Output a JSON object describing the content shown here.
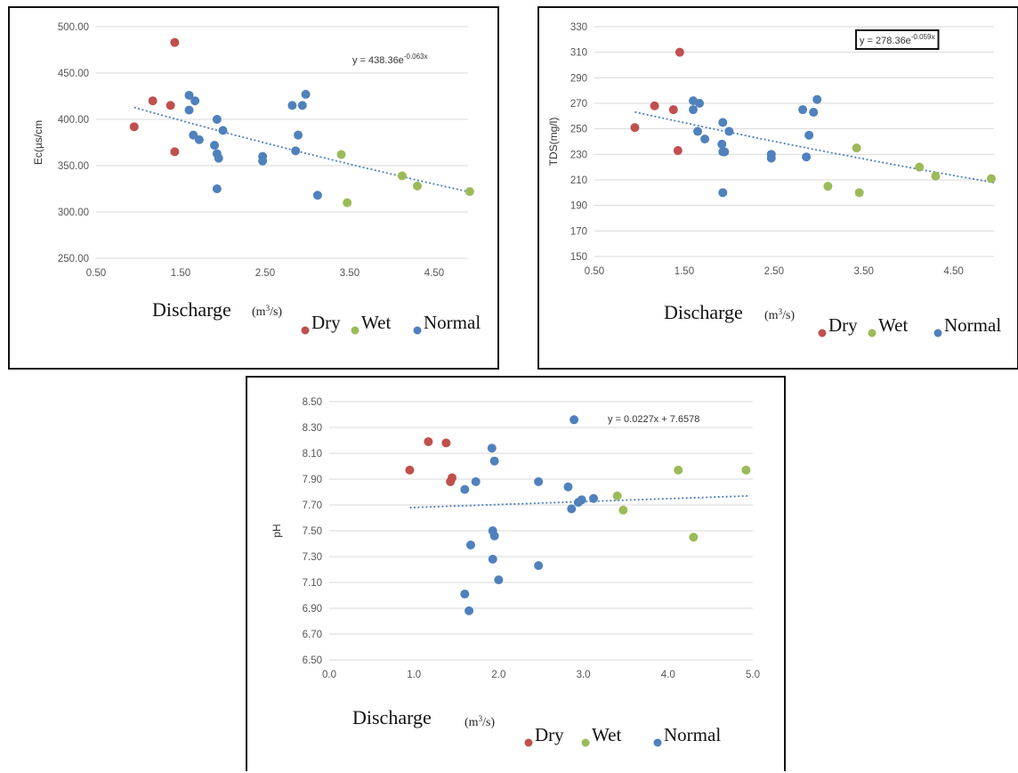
{
  "colors": {
    "dry": "#c0504d",
    "wet": "#9bbb59",
    "normal": "#4f81bd",
    "trend": "#4f81bd",
    "grid": "#d9d9d9"
  },
  "legend": {
    "dry": "Dry",
    "wet": "Wet",
    "normal": "Normal"
  },
  "x_title": "Discharge",
  "x_unit": {
    "base": "(m",
    "sup": "3",
    "tail": "/s)"
  },
  "chart_data": [
    {
      "id": "ec",
      "type": "scatter",
      "ylabel": "Ec(µs/cm",
      "yticks": [
        "250.00",
        "300.00",
        "350.00",
        "400.00",
        "450.00",
        "500.00"
      ],
      "xticks": [
        "0.50",
        "1.50",
        "2.50",
        "3.50",
        "4.50"
      ],
      "xlim": [
        0.5,
        4.9
      ],
      "ylim": [
        250,
        500
      ],
      "grid": true,
      "equation": {
        "base": "y = 438.36e",
        "sup": "-0.063x"
      },
      "equation_boxed": false,
      "trend": {
        "kind": "exp",
        "a": 438.36,
        "b": -0.063,
        "x_from": 0.95,
        "x_to": 4.9
      },
      "series": [
        {
          "name": "Dry",
          "points": [
            [
              0.95,
              392
            ],
            [
              1.17,
              420
            ],
            [
              1.38,
              415
            ],
            [
              1.43,
              483
            ],
            [
              1.43,
              365
            ]
          ]
        },
        {
          "name": "Wet",
          "points": [
            [
              3.4,
              362
            ],
            [
              3.47,
              310
            ],
            [
              4.12,
              339
            ],
            [
              4.3,
              328
            ],
            [
              4.92,
              322
            ]
          ]
        },
        {
          "name": "Normal",
          "points": [
            [
              1.6,
              426
            ],
            [
              1.6,
              410
            ],
            [
              1.67,
              420
            ],
            [
              1.65,
              383
            ],
            [
              1.72,
              378
            ],
            [
              1.9,
              372
            ],
            [
              1.93,
              363
            ],
            [
              1.95,
              358
            ],
            [
              1.93,
              400
            ],
            [
              2.0,
              388
            ],
            [
              1.93,
              325
            ],
            [
              2.47,
              360
            ],
            [
              2.47,
              355
            ],
            [
              2.82,
              415
            ],
            [
              2.86,
              366
            ],
            [
              2.89,
              383
            ],
            [
              2.94,
              415
            ],
            [
              2.98,
              427
            ],
            [
              3.12,
              318
            ]
          ]
        }
      ]
    },
    {
      "id": "tds",
      "type": "scatter",
      "ylabel": "TDS(mg/l)",
      "yticks": [
        "150",
        "170",
        "190",
        "210",
        "230",
        "250",
        "270",
        "290",
        "310",
        "330"
      ],
      "xticks": [
        "0.50",
        "1.50",
        "2.50",
        "3.50",
        "4.50"
      ],
      "xlim": [
        0.5,
        4.95
      ],
      "ylim": [
        150,
        330
      ],
      "grid": true,
      "equation": {
        "base": "y = 278.36e",
        "sup": "-0.059x"
      },
      "equation_boxed": true,
      "trend": {
        "kind": "exp",
        "a": 278.36,
        "b": -0.059,
        "x_from": 0.95,
        "x_to": 4.95
      },
      "series": [
        {
          "name": "Dry",
          "points": [
            [
              0.95,
              251
            ],
            [
              1.17,
              268
            ],
            [
              1.38,
              265
            ],
            [
              1.43,
              233
            ],
            [
              1.45,
              310
            ]
          ]
        },
        {
          "name": "Wet",
          "points": [
            [
              3.1,
              205
            ],
            [
              3.42,
              235
            ],
            [
              3.45,
              200
            ],
            [
              4.12,
              220
            ],
            [
              4.3,
              213
            ],
            [
              4.92,
              211
            ]
          ]
        },
        {
          "name": "Normal",
          "points": [
            [
              1.6,
              272
            ],
            [
              1.6,
              265
            ],
            [
              1.67,
              270
            ],
            [
              1.65,
              248
            ],
            [
              1.73,
              242
            ],
            [
              1.92,
              238
            ],
            [
              1.93,
              232
            ],
            [
              1.95,
              232
            ],
            [
              1.93,
              255
            ],
            [
              2.0,
              248
            ],
            [
              1.93,
              200
            ],
            [
              2.47,
              230
            ],
            [
              2.47,
              227
            ],
            [
              2.82,
              265
            ],
            [
              2.86,
              228
            ],
            [
              2.89,
              245
            ],
            [
              2.94,
              263
            ],
            [
              2.98,
              273
            ]
          ]
        }
      ]
    },
    {
      "id": "ph",
      "type": "scatter",
      "ylabel": "pH",
      "yticks": [
        "6.50",
        "6.70",
        "6.90",
        "7.10",
        "7.30",
        "7.50",
        "7.70",
        "7.90",
        "8.10",
        "8.30",
        "8.50"
      ],
      "xticks": [
        "0.0",
        "1.0",
        "2.0",
        "3.0",
        "4.0",
        "5.0"
      ],
      "xlim": [
        0.0,
        5.0
      ],
      "ylim": [
        6.5,
        8.5
      ],
      "grid": true,
      "equation": {
        "base": "y = 0.0227x + 7.6578",
        "sup": ""
      },
      "equation_boxed": false,
      "trend": {
        "kind": "linear",
        "a": 7.6578,
        "b": 0.0227,
        "x_from": 0.95,
        "x_to": 4.95
      },
      "series": [
        {
          "name": "Dry",
          "points": [
            [
              0.95,
              7.97
            ],
            [
              1.17,
              8.19
            ],
            [
              1.38,
              8.18
            ],
            [
              1.43,
              7.88
            ],
            [
              1.45,
              7.91
            ]
          ]
        },
        {
          "name": "Wet",
          "points": [
            [
              3.4,
              7.77
            ],
            [
              3.47,
              7.66
            ],
            [
              4.12,
              7.97
            ],
            [
              4.3,
              7.45
            ],
            [
              4.92,
              7.97
            ]
          ]
        },
        {
          "name": "Normal",
          "points": [
            [
              1.6,
              7.01
            ],
            [
              1.65,
              6.88
            ],
            [
              1.6,
              7.82
            ],
            [
              1.67,
              7.39
            ],
            [
              1.73,
              7.88
            ],
            [
              1.92,
              8.14
            ],
            [
              1.95,
              8.04
            ],
            [
              1.93,
              7.5
            ],
            [
              1.95,
              7.46
            ],
            [
              1.93,
              7.28
            ],
            [
              2.0,
              7.12
            ],
            [
              2.47,
              7.88
            ],
            [
              2.47,
              7.23
            ],
            [
              2.82,
              7.84
            ],
            [
              2.86,
              7.67
            ],
            [
              2.89,
              8.36
            ],
            [
              2.94,
              7.72
            ],
            [
              2.98,
              7.74
            ],
            [
              3.12,
              7.75
            ]
          ]
        }
      ]
    }
  ]
}
